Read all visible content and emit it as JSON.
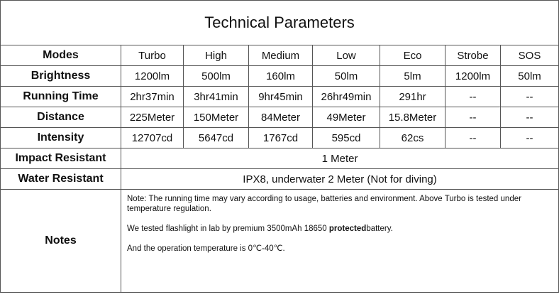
{
  "title": "Technical Parameters",
  "header": {
    "label": "Modes",
    "columns": [
      "Turbo",
      "High",
      "Medium",
      "Low",
      "Eco",
      "Strobe",
      "SOS"
    ]
  },
  "rows": [
    {
      "label": "Brightness",
      "values": [
        "1200lm",
        "500lm",
        "160lm",
        "50lm",
        "5lm",
        "1200lm",
        "50lm"
      ]
    },
    {
      "label": "Running Time",
      "values": [
        "2hr37min",
        "3hr41min",
        "9hr45min",
        "26hr49min",
        "291hr",
        "--",
        "--"
      ]
    },
    {
      "label": "Distance",
      "values": [
        "225Meter",
        "150Meter",
        "84Meter",
        "49Meter",
        "15.8Meter",
        "--",
        "--"
      ]
    },
    {
      "label": "Intensity",
      "values": [
        "12707cd",
        "5647cd",
        "1767cd",
        "595cd",
        "62cs",
        "--",
        "--"
      ]
    }
  ],
  "spans": [
    {
      "label": "Impact Resistant",
      "value": "1 Meter"
    },
    {
      "label": "Water Resistant",
      "value": "IPX8, underwater 2 Meter (Not for diving)"
    }
  ],
  "notes": {
    "label": "Notes",
    "lines": [
      [
        "Note: The running time may vary according to usage, batteries and environment. Above Turbo is tested under temperature regulation."
      ],
      [
        "We tested flashlight in lab by premium 3500mAh 18650 ",
        "protected",
        "battery."
      ],
      [
        "And the operation temperature is 0℃-40℃."
      ]
    ]
  }
}
